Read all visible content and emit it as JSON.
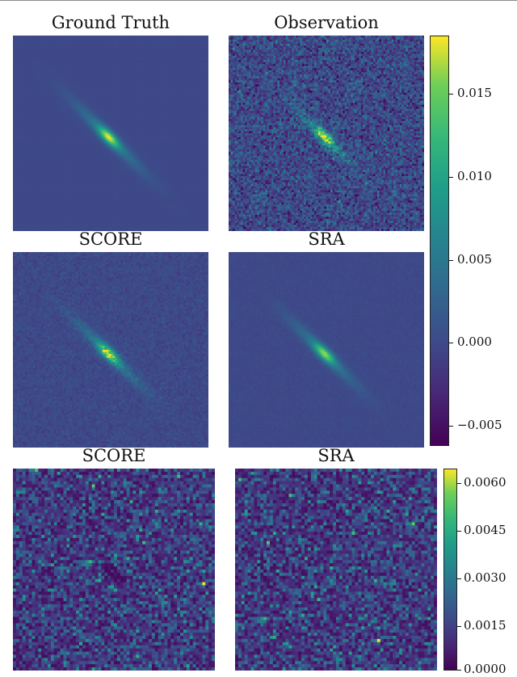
{
  "chart_data": [
    {
      "type": "heatmap",
      "title": "Ground Truth",
      "description_pattern": "elongated-gaussian",
      "noise": 0.0,
      "colormap": "viridis",
      "vmin": -0.0062,
      "vmax": 0.0185
    },
    {
      "type": "heatmap",
      "title": "Observation",
      "description_pattern": "elongated-gaussian-noisy",
      "noise": 0.0025,
      "colormap": "viridis",
      "vmin": -0.0062,
      "vmax": 0.0185
    },
    {
      "type": "heatmap",
      "title": "SCORE",
      "description_pattern": "elongated-gaussian-speckled",
      "noise": 0.0006,
      "colormap": "viridis",
      "vmin": -0.0062,
      "vmax": 0.0185
    },
    {
      "type": "heatmap",
      "title": "SRA",
      "description_pattern": "elongated-gaussian-smooth",
      "noise": 0.0002,
      "colormap": "viridis",
      "vmin": -0.0062,
      "vmax": 0.0185
    },
    {
      "type": "heatmap",
      "title": "SCORE",
      "description_pattern": "residual-noise",
      "colormap": "viridis",
      "vmin": 0.0,
      "vmax": 0.0063
    },
    {
      "type": "heatmap",
      "title": "SRA",
      "description_pattern": "residual-noise",
      "colormap": "viridis",
      "vmin": 0.0,
      "vmax": 0.0063
    }
  ],
  "colorbars": [
    {
      "ticks": [
        "0.015",
        "0.010",
        "0.005",
        "0.000",
        "−0.005"
      ],
      "tick_values": [
        0.015,
        0.01,
        0.005,
        0.0,
        -0.005
      ],
      "vmin": -0.0062,
      "vmax": 0.0185
    },
    {
      "ticks": [
        "0.0060",
        "0.0045",
        "0.0030",
        "0.0015",
        "0.0000"
      ],
      "tick_values": [
        0.006,
        0.0045,
        0.003,
        0.0015,
        0.0
      ],
      "vmin": 0.0,
      "vmax": 0.0063
    }
  ]
}
